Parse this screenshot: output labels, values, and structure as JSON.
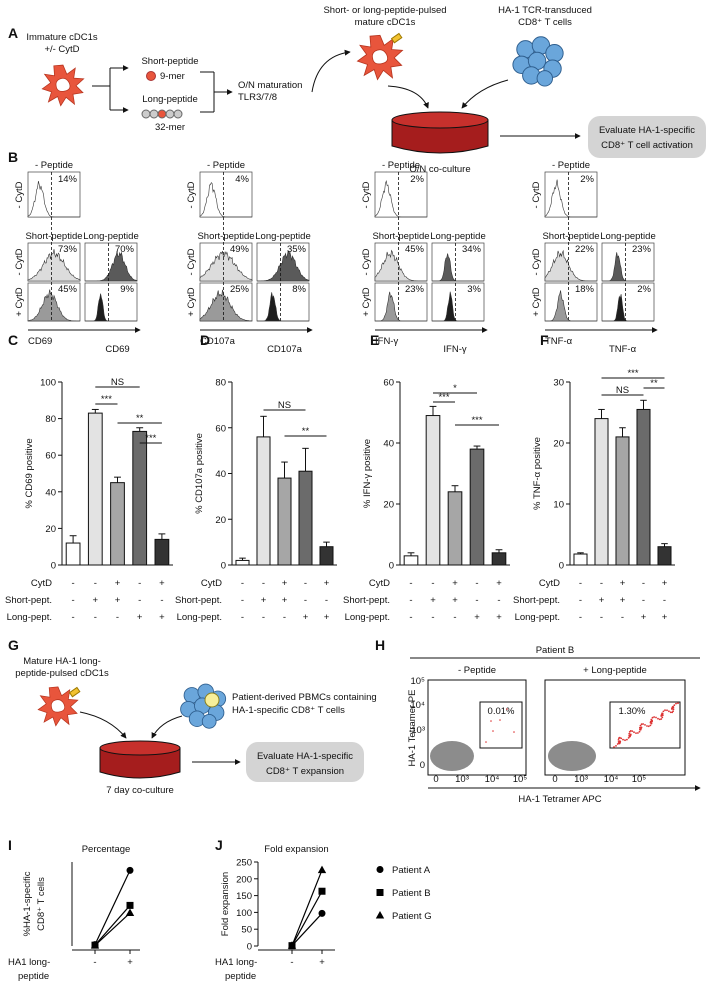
{
  "panel_a": {
    "label": "A",
    "immature": [
      "Immature cDC1s",
      "+/- CytD"
    ],
    "short": "Short-peptide",
    "short_len": "9-mer",
    "long": "Long-peptide",
    "long_len": "32-mer",
    "maturation": [
      "O/N maturation",
      "TLR3/7/8"
    ],
    "pulsed": [
      "Short- or long-peptide-pulsed",
      "mature cDC1s"
    ],
    "tcells": [
      "HA-1 TCR-transduced",
      "CD8⁺ T cells"
    ],
    "coculture": "O/N co-culture",
    "evaluate": [
      "Evaluate HA-1-specific",
      "CD8⁺ T cell activation"
    ]
  },
  "panel_b": {
    "label": "B",
    "no_peptide": "- Peptide",
    "minus_cytd": "- CytD",
    "plus_cytd": "+ CytD",
    "short": "Short-peptide",
    "long": "Long-peptide",
    "markers": [
      {
        "name": "CD69",
        "neg": "14%",
        "short_minus": "73%",
        "long_minus": "70%",
        "short_plus": "45%",
        "long_plus": "9%"
      },
      {
        "name": "CD107a",
        "neg": "4%",
        "short_minus": "49%",
        "long_minus": "35%",
        "short_plus": "25%",
        "long_plus": "8%"
      },
      {
        "name": "IFN-γ",
        "neg": "2%",
        "short_minus": "45%",
        "long_minus": "34%",
        "short_plus": "23%",
        "long_plus": "3%"
      },
      {
        "name": "TNF-α",
        "neg": "2%",
        "short_minus": "22%",
        "long_minus": "23%",
        "short_plus": "18%",
        "long_plus": "2%"
      }
    ]
  },
  "conditions": {
    "rows": [
      {
        "label": "CytD",
        "values": [
          "-",
          "-",
          "+",
          "-",
          "+"
        ]
      },
      {
        "label": "Short-pept.",
        "values": [
          "-",
          "+",
          "+",
          "-",
          "-"
        ]
      },
      {
        "label": "Long-pept.",
        "values": [
          "-",
          "-",
          "-",
          "+",
          "+"
        ]
      }
    ]
  },
  "chart_data": [
    {
      "type": "bar",
      "label": "C",
      "title": "CD69",
      "y_label": "% CD69 positive",
      "values": [
        12,
        83,
        45,
        73,
        14
      ],
      "errors": [
        4,
        2,
        3,
        2,
        3
      ],
      "colors": [
        "#ffffff",
        "#e3e3e3",
        "#a6a6a6",
        "#6b6b6b",
        "#333333"
      ],
      "ylim": [
        0,
        100
      ],
      "yticks": [
        0,
        20,
        40,
        60,
        80,
        100
      ],
      "annotations": [
        "NS",
        "***",
        "**",
        "***"
      ]
    },
    {
      "type": "bar",
      "label": "D",
      "title": "CD107a",
      "y_label": "% CD107a positive",
      "values": [
        2,
        56,
        38,
        41,
        8
      ],
      "errors": [
        1,
        9,
        7,
        10,
        2
      ],
      "colors": [
        "#ffffff",
        "#e3e3e3",
        "#a6a6a6",
        "#6b6b6b",
        "#333333"
      ],
      "ylim": [
        0,
        80
      ],
      "yticks": [
        0,
        20,
        40,
        60,
        80
      ],
      "annotations": [
        "NS",
        "**"
      ]
    },
    {
      "type": "bar",
      "label": "E",
      "title": "IFN-γ",
      "y_label": "% IFN-γ positive",
      "values": [
        3,
        49,
        24,
        38,
        4
      ],
      "errors": [
        1,
        3,
        2,
        1,
        1
      ],
      "colors": [
        "#ffffff",
        "#e3e3e3",
        "#a6a6a6",
        "#6b6b6b",
        "#333333"
      ],
      "ylim": [
        0,
        60
      ],
      "yticks": [
        0,
        20,
        40,
        60
      ],
      "annotations": [
        "*",
        "***",
        "***"
      ]
    },
    {
      "type": "bar",
      "label": "F",
      "title": "TNF-α",
      "y_label": "% TNF-α positive",
      "values": [
        1.8,
        24,
        21,
        25.5,
        3
      ],
      "errors": [
        0.2,
        1.5,
        1.5,
        1.5,
        0.5
      ],
      "colors": [
        "#ffffff",
        "#e3e3e3",
        "#a6a6a6",
        "#6b6b6b",
        "#333333"
      ],
      "ylim": [
        0,
        30
      ],
      "yticks": [
        0,
        10,
        20,
        30
      ],
      "annotations": [
        "***",
        "NS",
        "**"
      ]
    },
    {
      "type": "line",
      "label": "I",
      "title": "Percentage",
      "y_label": [
        "%HA-1-specific",
        "CD8⁺ T cells"
      ],
      "x_label": [
        "HA1 long-",
        "peptide"
      ],
      "categories": [
        "-",
        "+"
      ],
      "ylim": [
        0,
        3
      ],
      "series": [
        {
          "marker": "circle",
          "color": "#000000",
          "values": [
            0.05,
            2.7
          ]
        },
        {
          "marker": "square",
          "color": "#000000",
          "values": [
            0.03,
            1.45
          ]
        },
        {
          "marker": "triangle",
          "color": "#000000",
          "values": [
            0.02,
            1.18
          ]
        }
      ]
    },
    {
      "type": "line",
      "label": "J",
      "title": "Fold expansion",
      "y_label": [
        "Fold expansion"
      ],
      "x_label": [
        "HA1 long-",
        "peptide"
      ],
      "categories": [
        "-",
        "+"
      ],
      "ylim": [
        0,
        250
      ],
      "yticks": [
        0,
        50,
        100,
        150,
        200,
        250
      ],
      "series": [
        {
          "name": "Patient A",
          "marker": "circle",
          "color": "#000000",
          "values": [
            1,
            97
          ]
        },
        {
          "name": "Patient B",
          "marker": "square",
          "color": "#000000",
          "values": [
            1,
            163
          ]
        },
        {
          "name": "Patient G",
          "marker": "triangle",
          "color": "#000000",
          "values": [
            1,
            226
          ]
        }
      ]
    }
  ],
  "panel_g": {
    "label": "G",
    "dc": [
      "Mature HA-1 long-",
      "peptide-pulsed cDC1s"
    ],
    "pbmc": [
      "Patient-derived PBMCs containing",
      "HA-1-specific CD8⁺ T cells"
    ],
    "coculture": "7 day co-culture",
    "evaluate": [
      "Evaluate HA-1-specific",
      "CD8⁺ T expansion"
    ]
  },
  "panel_h": {
    "label": "H",
    "patient": "Patient B",
    "no_peptide": "- Peptide",
    "long_peptide": "+ Long-peptide",
    "gate_neg": "0.01%",
    "gate_pos": "1.30%",
    "y_label": "HA-1 Tetramer PE",
    "x_label": "HA-1 Tetramer APC",
    "y_ticks": [
      "10⁵",
      "10⁴",
      "10³",
      "0"
    ],
    "x_ticks": [
      "0",
      "10³",
      "10⁴",
      "10⁵"
    ]
  }
}
